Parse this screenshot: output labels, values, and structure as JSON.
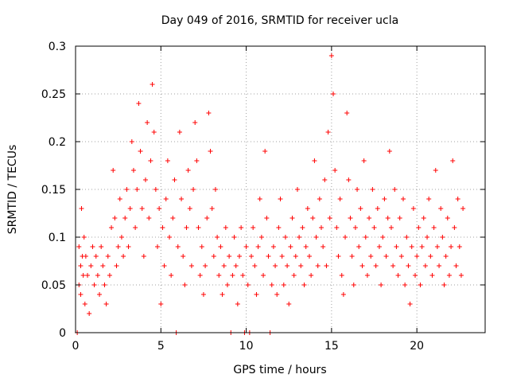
{
  "chart_data": {
    "type": "scatter",
    "title": "Day 049 of 2016, SRMTID for receiver ucla",
    "xlabel": "GPS time / hours",
    "ylabel": "SRMTID / TECUs",
    "xlim": [
      0,
      24
    ],
    "ylim": [
      0,
      0.3
    ],
    "xticks": [
      0,
      5,
      10,
      15,
      20
    ],
    "yticks": [
      0,
      0.05,
      0.1,
      0.15,
      0.2,
      0.25,
      0.3
    ],
    "ytick_labels": [
      "0",
      "0.05",
      "0.1",
      "0.15",
      "0.2",
      "0.25",
      "0.3"
    ],
    "xtick_labels": [
      "0",
      "5",
      "10",
      "15",
      "20"
    ],
    "grid": true,
    "marker": "+",
    "color": "#ff0000",
    "series": [
      {
        "name": "SRMTID",
        "points": [
          [
            0.1,
            0.0
          ],
          [
            0.2,
            0.05
          ],
          [
            0.2,
            0.09
          ],
          [
            0.3,
            0.07
          ],
          [
            0.3,
            0.04
          ],
          [
            0.35,
            0.13
          ],
          [
            0.4,
            0.08
          ],
          [
            0.45,
            0.06
          ],
          [
            0.5,
            0.1
          ],
          [
            0.55,
            0.03
          ],
          [
            0.6,
            0.08
          ],
          [
            0.7,
            0.06
          ],
          [
            0.8,
            0.02
          ],
          [
            0.9,
            0.07
          ],
          [
            1.0,
            0.09
          ],
          [
            1.1,
            0.05
          ],
          [
            1.2,
            0.08
          ],
          [
            1.3,
            0.06
          ],
          [
            1.4,
            0.04
          ],
          [
            1.5,
            0.09
          ],
          [
            1.6,
            0.07
          ],
          [
            1.7,
            0.05
          ],
          [
            1.8,
            0.03
          ],
          [
            1.9,
            0.08
          ],
          [
            2.0,
            0.06
          ],
          [
            2.1,
            0.11
          ],
          [
            2.2,
            0.17
          ],
          [
            2.3,
            0.12
          ],
          [
            2.4,
            0.07
          ],
          [
            2.5,
            0.09
          ],
          [
            2.6,
            0.14
          ],
          [
            2.7,
            0.1
          ],
          [
            2.8,
            0.08
          ],
          [
            2.9,
            0.12
          ],
          [
            3.0,
            0.15
          ],
          [
            3.1,
            0.09
          ],
          [
            3.2,
            0.13
          ],
          [
            3.3,
            0.2
          ],
          [
            3.4,
            0.17
          ],
          [
            3.5,
            0.11
          ],
          [
            3.6,
            0.15
          ],
          [
            3.7,
            0.24
          ],
          [
            3.8,
            0.19
          ],
          [
            3.9,
            0.13
          ],
          [
            4.0,
            0.08
          ],
          [
            4.1,
            0.16
          ],
          [
            4.2,
            0.22
          ],
          [
            4.3,
            0.12
          ],
          [
            4.4,
            0.18
          ],
          [
            4.5,
            0.26
          ],
          [
            4.6,
            0.21
          ],
          [
            4.7,
            0.15
          ],
          [
            4.8,
            0.09
          ],
          [
            4.9,
            0.13
          ],
          [
            5.0,
            0.03
          ],
          [
            5.1,
            0.11
          ],
          [
            5.2,
            0.07
          ],
          [
            5.3,
            0.14
          ],
          [
            5.4,
            0.18
          ],
          [
            5.5,
            0.1
          ],
          [
            5.6,
            0.06
          ],
          [
            5.7,
            0.12
          ],
          [
            5.8,
            0.16
          ],
          [
            5.9,
            0.0
          ],
          [
            6.0,
            0.09
          ],
          [
            6.1,
            0.21
          ],
          [
            6.2,
            0.14
          ],
          [
            6.3,
            0.08
          ],
          [
            6.4,
            0.05
          ],
          [
            6.5,
            0.11
          ],
          [
            6.6,
            0.17
          ],
          [
            6.7,
            0.13
          ],
          [
            6.8,
            0.07
          ],
          [
            6.9,
            0.15
          ],
          [
            7.0,
            0.22
          ],
          [
            7.1,
            0.18
          ],
          [
            7.2,
            0.11
          ],
          [
            7.3,
            0.06
          ],
          [
            7.4,
            0.09
          ],
          [
            7.5,
            0.04
          ],
          [
            7.6,
            0.07
          ],
          [
            7.7,
            0.12
          ],
          [
            7.8,
            0.23
          ],
          [
            7.9,
            0.19
          ],
          [
            8.0,
            0.13
          ],
          [
            8.1,
            0.08
          ],
          [
            8.2,
            0.15
          ],
          [
            8.3,
            0.1
          ],
          [
            8.4,
            0.06
          ],
          [
            8.5,
            0.09
          ],
          [
            8.6,
            0.04
          ],
          [
            8.7,
            0.07
          ],
          [
            8.8,
            0.11
          ],
          [
            8.9,
            0.05
          ],
          [
            9.0,
            0.08
          ],
          [
            9.1,
            0.0
          ],
          [
            9.2,
            0.06
          ],
          [
            9.3,
            0.1
          ],
          [
            9.4,
            0.07
          ],
          [
            9.5,
            0.03
          ],
          [
            9.6,
            0.08
          ],
          [
            9.7,
            0.11
          ],
          [
            9.8,
            0.06
          ],
          [
            9.9,
            0.0
          ],
          [
            10.0,
            0.09
          ],
          [
            10.1,
            0.05
          ],
          [
            10.2,
            0.0
          ],
          [
            10.3,
            0.08
          ],
          [
            10.4,
            0.11
          ],
          [
            10.5,
            0.07
          ],
          [
            10.6,
            0.04
          ],
          [
            10.7,
            0.09
          ],
          [
            10.8,
            0.14
          ],
          [
            10.9,
            0.1
          ],
          [
            11.0,
            0.06
          ],
          [
            11.1,
            0.19
          ],
          [
            11.2,
            0.12
          ],
          [
            11.3,
            0.08
          ],
          [
            11.4,
            0.0
          ],
          [
            11.5,
            0.05
          ],
          [
            11.6,
            0.09
          ],
          [
            11.7,
            0.07
          ],
          [
            11.8,
            0.04
          ],
          [
            11.9,
            0.11
          ],
          [
            12.0,
            0.14
          ],
          [
            12.1,
            0.08
          ],
          [
            12.2,
            0.05
          ],
          [
            12.3,
            0.1
          ],
          [
            12.4,
            0.07
          ],
          [
            12.5,
            0.03
          ],
          [
            12.6,
            0.09
          ],
          [
            12.7,
            0.12
          ],
          [
            12.8,
            0.06
          ],
          [
            12.9,
            0.08
          ],
          [
            13.0,
            0.15
          ],
          [
            13.1,
            0.1
          ],
          [
            13.2,
            0.07
          ],
          [
            13.3,
            0.11
          ],
          [
            13.4,
            0.05
          ],
          [
            13.5,
            0.09
          ],
          [
            13.6,
            0.13
          ],
          [
            13.7,
            0.08
          ],
          [
            13.8,
            0.06
          ],
          [
            13.9,
            0.12
          ],
          [
            14.0,
            0.18
          ],
          [
            14.1,
            0.1
          ],
          [
            14.2,
            0.07
          ],
          [
            14.3,
            0.14
          ],
          [
            14.4,
            0.11
          ],
          [
            14.5,
            0.09
          ],
          [
            14.6,
            0.16
          ],
          [
            14.7,
            0.07
          ],
          [
            14.8,
            0.21
          ],
          [
            14.9,
            0.12
          ],
          [
            15.0,
            0.29
          ],
          [
            15.1,
            0.25
          ],
          [
            15.2,
            0.17
          ],
          [
            15.3,
            0.11
          ],
          [
            15.4,
            0.08
          ],
          [
            15.5,
            0.14
          ],
          [
            15.6,
            0.06
          ],
          [
            15.7,
            0.04
          ],
          [
            15.8,
            0.1
          ],
          [
            15.9,
            0.23
          ],
          [
            16.0,
            0.16
          ],
          [
            16.1,
            0.12
          ],
          [
            16.2,
            0.08
          ],
          [
            16.3,
            0.05
          ],
          [
            16.4,
            0.11
          ],
          [
            16.5,
            0.15
          ],
          [
            16.6,
            0.09
          ],
          [
            16.7,
            0.13
          ],
          [
            16.8,
            0.07
          ],
          [
            16.9,
            0.18
          ],
          [
            17.0,
            0.1
          ],
          [
            17.1,
            0.06
          ],
          [
            17.2,
            0.12
          ],
          [
            17.3,
            0.08
          ],
          [
            17.4,
            0.15
          ],
          [
            17.5,
            0.11
          ],
          [
            17.6,
            0.07
          ],
          [
            17.7,
            0.13
          ],
          [
            17.8,
            0.09
          ],
          [
            17.9,
            0.05
          ],
          [
            18.0,
            0.1
          ],
          [
            18.1,
            0.14
          ],
          [
            18.2,
            0.08
          ],
          [
            18.3,
            0.12
          ],
          [
            18.4,
            0.19
          ],
          [
            18.5,
            0.11
          ],
          [
            18.6,
            0.07
          ],
          [
            18.7,
            0.15
          ],
          [
            18.8,
            0.09
          ],
          [
            18.9,
            0.06
          ],
          [
            19.0,
            0.12
          ],
          [
            19.1,
            0.08
          ],
          [
            19.2,
            0.14
          ],
          [
            19.3,
            0.05
          ],
          [
            19.4,
            0.1
          ],
          [
            19.5,
            0.07
          ],
          [
            19.6,
            0.03
          ],
          [
            19.7,
            0.09
          ],
          [
            19.8,
            0.13
          ],
          [
            19.9,
            0.06
          ],
          [
            20.0,
            0.08
          ],
          [
            20.1,
            0.11
          ],
          [
            20.2,
            0.05
          ],
          [
            20.3,
            0.09
          ],
          [
            20.4,
            0.12
          ],
          [
            20.5,
            0.07
          ],
          [
            20.6,
            0.1
          ],
          [
            20.7,
            0.14
          ],
          [
            20.8,
            0.08
          ],
          [
            20.9,
            0.06
          ],
          [
            21.0,
            0.11
          ],
          [
            21.1,
            0.17
          ],
          [
            21.2,
            0.09
          ],
          [
            21.3,
            0.07
          ],
          [
            21.4,
            0.13
          ],
          [
            21.5,
            0.1
          ],
          [
            21.6,
            0.05
          ],
          [
            21.7,
            0.08
          ],
          [
            21.8,
            0.12
          ],
          [
            21.9,
            0.06
          ],
          [
            22.0,
            0.09
          ],
          [
            22.1,
            0.18
          ],
          [
            22.2,
            0.11
          ],
          [
            22.3,
            0.07
          ],
          [
            22.4,
            0.14
          ],
          [
            22.5,
            0.09
          ],
          [
            22.6,
            0.06
          ],
          [
            22.7,
            0.13
          ]
        ]
      }
    ]
  }
}
